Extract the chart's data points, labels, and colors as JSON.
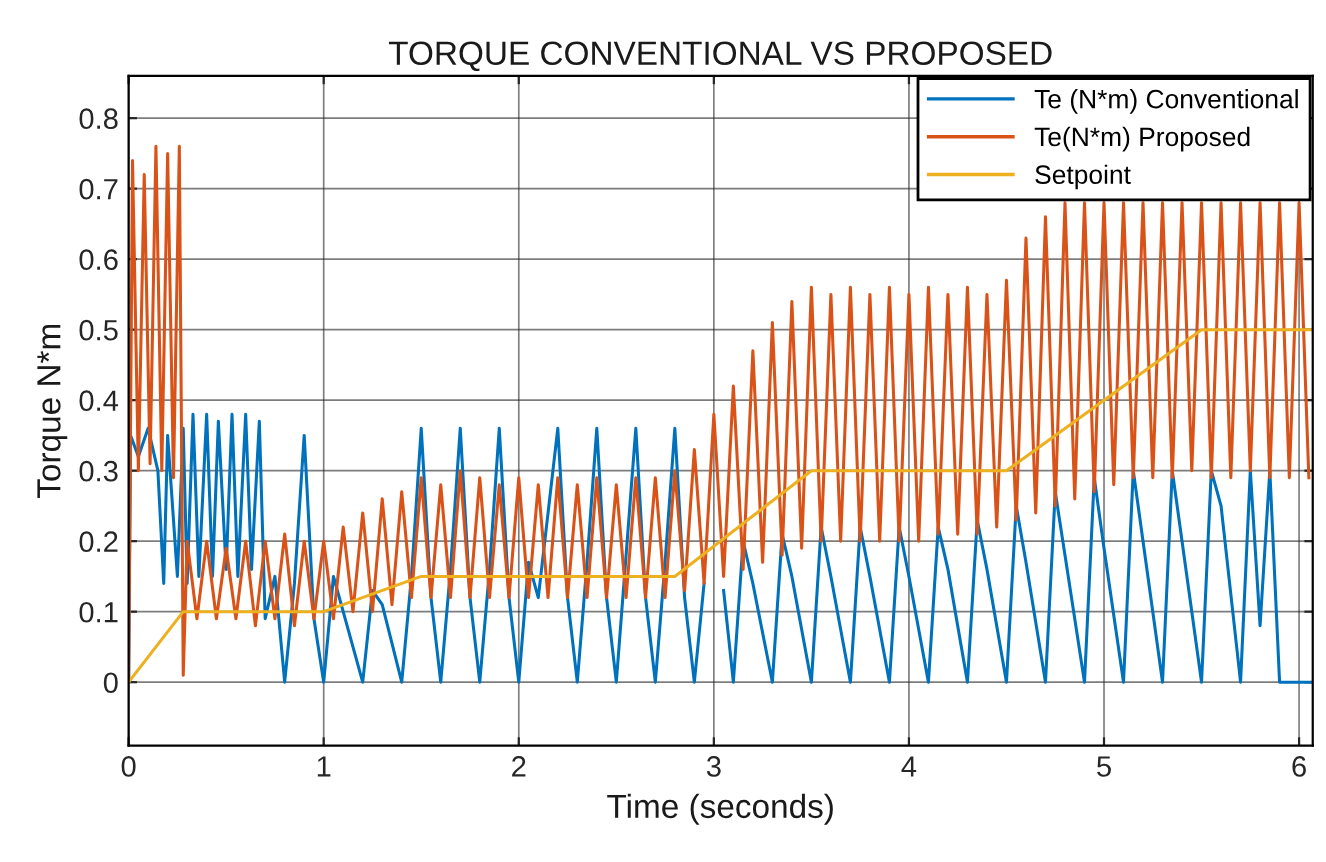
{
  "chart_data": {
    "type": "line",
    "title": "TORQUE CONVENTIONAL VS PROPOSED",
    "xlabel": "Time (seconds)",
    "ylabel": "Torque N*m",
    "xlim": [
      0,
      6.07
    ],
    "ylim": [
      -0.09,
      0.86
    ],
    "xticks": [
      0,
      1,
      2,
      3,
      4,
      5,
      6
    ],
    "yticks": [
      0,
      0.1,
      0.2,
      0.3,
      0.4,
      0.5,
      0.6,
      0.7,
      0.8
    ],
    "grid": true,
    "legend": "top right",
    "line_style": "solid",
    "marker": "none",
    "series": [
      {
        "name": "Te (N*m) Conventional",
        "color": "#0072bd",
        "x": [
          0,
          0.01,
          0.05,
          0.1,
          0.15,
          0.18,
          0.2,
          0.25,
          0.28,
          0.3,
          0.33,
          0.36,
          0.4,
          0.43,
          0.46,
          0.5,
          0.53,
          0.56,
          0.6,
          0.63,
          0.67,
          0.7,
          0.75,
          0.8,
          0.85,
          0.9,
          0.95,
          1.0,
          1.05,
          1.1,
          1.2,
          1.25,
          1.3,
          1.4,
          1.45,
          1.5,
          1.55,
          1.6,
          1.65,
          1.7,
          1.75,
          1.8,
          1.85,
          1.9,
          1.95,
          2.0,
          2.05,
          2.1,
          2.2,
          2.25,
          2.3,
          2.35,
          2.4,
          2.45,
          2.5,
          2.55,
          2.6,
          2.65,
          2.7,
          2.75,
          2.8,
          2.85,
          2.9,
          2.95,
          3.0,
          3.05,
          3.1,
          3.15,
          3.2,
          3.3,
          3.35,
          3.4,
          3.5,
          3.55,
          3.6,
          3.7,
          3.75,
          3.8,
          3.9,
          3.95,
          4.0,
          4.1,
          4.15,
          4.2,
          4.3,
          4.35,
          4.4,
          4.5,
          4.55,
          4.6,
          4.7,
          4.75,
          4.8,
          4.9,
          4.95,
          5.0,
          5.1,
          5.15,
          5.2,
          5.3,
          5.35,
          5.4,
          5.5,
          5.55,
          5.6,
          5.7,
          5.75,
          5.8,
          5.85,
          5.9,
          6.07
        ],
        "values": [
          0,
          0.35,
          0.32,
          0.36,
          0.3,
          0.14,
          0.35,
          0.15,
          0.36,
          0.14,
          0.38,
          0.15,
          0.38,
          0.15,
          0.37,
          0.16,
          0.38,
          0.15,
          0.38,
          0.16,
          0.37,
          0.09,
          0.15,
          0.0,
          0.14,
          0.35,
          0.09,
          0.0,
          0.15,
          0.1,
          0.0,
          0.13,
          0.11,
          0.0,
          0.15,
          0.36,
          0.12,
          0.0,
          0.16,
          0.36,
          0.12,
          0.0,
          0.16,
          0.36,
          0.12,
          0.0,
          0.17,
          0.12,
          0.36,
          0.12,
          0.0,
          0.17,
          0.36,
          0.12,
          0.0,
          0.18,
          0.36,
          0.12,
          0.0,
          0.17,
          0.36,
          0.12,
          0.0,
          0.14,
          null,
          0.13,
          0.0,
          0.2,
          0.14,
          0.0,
          0.21,
          0.15,
          0.0,
          0.22,
          0.15,
          0.0,
          0.22,
          0.15,
          0.0,
          0.22,
          0.15,
          0.0,
          0.22,
          0.16,
          0.0,
          0.23,
          0.16,
          0.0,
          0.25,
          0.17,
          0.0,
          0.27,
          0.18,
          0.0,
          0.29,
          0.19,
          0.0,
          0.3,
          0.2,
          0.0,
          0.3,
          0.2,
          0.0,
          0.3,
          0.25,
          0.0,
          0.3,
          0.08,
          0.3,
          0.0,
          0.0
        ]
      },
      {
        "name": "Te(N*m) Proposed",
        "color": "#d95319",
        "x": [
          0,
          0.02,
          0.05,
          0.08,
          0.11,
          0.14,
          0.17,
          0.2,
          0.23,
          0.26,
          0.28,
          0.3,
          0.35,
          0.4,
          0.45,
          0.5,
          0.55,
          0.6,
          0.65,
          0.7,
          0.75,
          0.8,
          0.85,
          0.9,
          0.95,
          1.0,
          1.05,
          1.1,
          1.15,
          1.2,
          1.25,
          1.3,
          1.35,
          1.4,
          1.45,
          1.5,
          1.55,
          1.6,
          1.65,
          1.7,
          1.75,
          1.8,
          1.85,
          1.9,
          1.95,
          2.0,
          2.05,
          2.1,
          2.15,
          2.2,
          2.25,
          2.3,
          2.35,
          2.4,
          2.45,
          2.5,
          2.55,
          2.6,
          2.65,
          2.7,
          2.75,
          2.8,
          2.85,
          2.9,
          2.95,
          3.0,
          3.05,
          3.1,
          3.15,
          3.2,
          3.25,
          3.3,
          3.35,
          3.4,
          3.45,
          3.5,
          3.55,
          3.6,
          3.65,
          3.7,
          3.75,
          3.8,
          3.85,
          3.9,
          3.95,
          4.0,
          4.05,
          4.1,
          4.15,
          4.2,
          4.25,
          4.3,
          4.35,
          4.4,
          4.45,
          4.5,
          4.55,
          4.6,
          4.65,
          4.7,
          4.75,
          4.8,
          4.85,
          4.9,
          4.95,
          5.0,
          5.05,
          5.1,
          5.15,
          5.2,
          5.25,
          5.3,
          5.35,
          5.4,
          5.45,
          5.5,
          5.55,
          5.6,
          5.65,
          5.7,
          5.75,
          5.8,
          5.85,
          5.9,
          5.95,
          6.0,
          6.05
        ],
        "values": [
          0,
          0.74,
          0.3,
          0.72,
          0.31,
          0.76,
          0.3,
          0.75,
          0.29,
          0.76,
          0.01,
          0.2,
          0.09,
          0.2,
          0.09,
          0.19,
          0.09,
          0.2,
          0.08,
          0.2,
          0.09,
          0.21,
          0.08,
          0.2,
          0.09,
          0.2,
          0.09,
          0.22,
          0.1,
          0.24,
          0.1,
          0.26,
          0.11,
          0.27,
          0.12,
          0.29,
          0.12,
          0.28,
          0.12,
          0.3,
          0.12,
          0.29,
          0.12,
          0.28,
          0.12,
          0.29,
          0.12,
          0.28,
          0.12,
          0.29,
          0.12,
          0.28,
          0.12,
          0.29,
          0.12,
          0.28,
          0.12,
          0.29,
          0.12,
          0.29,
          0.12,
          0.3,
          0.13,
          0.33,
          0.14,
          0.38,
          0.15,
          0.42,
          0.16,
          0.47,
          0.17,
          0.51,
          0.18,
          0.54,
          0.19,
          0.56,
          0.2,
          0.55,
          0.2,
          0.56,
          0.2,
          0.55,
          0.2,
          0.56,
          0.2,
          0.55,
          0.2,
          0.56,
          0.21,
          0.55,
          0.21,
          0.56,
          0.21,
          0.55,
          0.22,
          0.57,
          0.23,
          0.63,
          0.24,
          0.66,
          0.25,
          0.68,
          0.26,
          0.68,
          0.27,
          0.68,
          0.28,
          0.68,
          0.29,
          0.68,
          0.29,
          0.68,
          0.29,
          0.68,
          0.3,
          0.68,
          0.29,
          0.68,
          0.29,
          0.68,
          0.3,
          0.68,
          0.29,
          0.68,
          0.29,
          0.68,
          0.29
        ]
      },
      {
        "name": "Setpoint",
        "color": "#edb120",
        "x": [
          0,
          0.28,
          1.0,
          1.5,
          2.8,
          3.5,
          4.5,
          5.5,
          6.07
        ],
        "values": [
          0,
          0.1,
          0.1,
          0.15,
          0.15,
          0.3,
          0.3,
          0.5,
          0.5
        ]
      }
    ]
  }
}
